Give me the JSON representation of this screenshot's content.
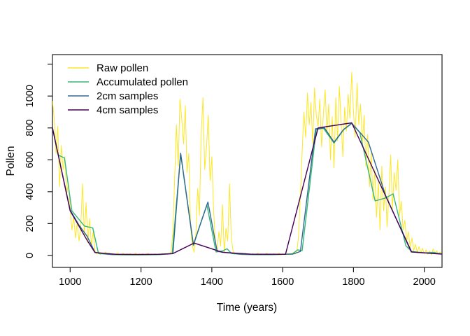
{
  "chart_data": {
    "type": "line",
    "title": "",
    "xlabel": "Time (years)",
    "ylabel": "Pollen",
    "xlim": [
      950,
      2050
    ],
    "ylim": [
      -75,
      1260
    ],
    "grid": false,
    "legend_position": "top-left",
    "x_axis": {
      "ticks": [
        1000,
        1200,
        1400,
        1600,
        1800,
        2000
      ],
      "tick_labels": [
        "1000",
        "1200",
        "1400",
        "1600",
        "1800",
        "2000"
      ]
    },
    "y_axis": {
      "ticks": [
        0,
        200,
        400,
        600,
        800,
        1000,
        1200
      ],
      "tick_labels": [
        "0",
        "200",
        "400",
        "600",
        "800",
        "1000",
        ""
      ]
    },
    "series": [
      {
        "name": "Raw pollen",
        "color": "#FDE725",
        "width": 1,
        "x_start": 950,
        "x_step": 5,
        "values": [
          970,
          860,
          640,
          810,
          430,
          690,
          540,
          620,
          380,
          460,
          300,
          160,
          240,
          110,
          210,
          90,
          180,
          450,
          120,
          330,
          80,
          230,
          60,
          150,
          30,
          10,
          25,
          5,
          18,
          8,
          22,
          4,
          15,
          6,
          12,
          3,
          10,
          16,
          5,
          9,
          14,
          4,
          11,
          6,
          13,
          3,
          8,
          15,
          5,
          10,
          6,
          12,
          4,
          9,
          14,
          5,
          8,
          3,
          11,
          6,
          10,
          4,
          13,
          7,
          9,
          5,
          12,
          20,
          150,
          480,
          820,
          560,
          980,
          860,
          700,
          940,
          520,
          640,
          180,
          60,
          20,
          140,
          420,
          250,
          760,
          990,
          540,
          680,
          880,
          470,
          620,
          280,
          90,
          30,
          150,
          60,
          320,
          20,
          170,
          90,
          450,
          110,
          30,
          8,
          15,
          5,
          12,
          3,
          9,
          14,
          4,
          10,
          6,
          13,
          3,
          8,
          15,
          5,
          11,
          4,
          9,
          14,
          6,
          10,
          3,
          12,
          5,
          8,
          15,
          4,
          11,
          6,
          9,
          13,
          4,
          10,
          18,
          7,
          25,
          120,
          380,
          650,
          900,
          740,
          1020,
          820,
          960,
          700,
          1050,
          880,
          810,
          980,
          680,
          890,
          1040,
          760,
          950,
          600,
          870,
          550,
          990,
          720,
          1060,
          840,
          620,
          930,
          780,
          1010,
          860,
          1150,
          900,
          740,
          1080,
          820,
          950,
          700,
          880,
          560,
          760,
          430,
          640,
          350,
          540,
          240,
          460,
          160,
          560,
          280,
          430,
          180,
          380,
          630,
          290,
          520,
          410,
          600,
          250,
          340,
          160,
          220,
          90,
          150,
          50,
          110,
          30,
          70,
          20,
          55,
          15,
          45,
          10,
          35,
          8,
          28,
          5,
          40,
          15,
          30,
          10,
          22,
          6
        ]
      },
      {
        "name": "Accumulated pollen",
        "color": "#35B779",
        "width": 1.4,
        "points": [
          [
            950,
            800
          ],
          [
            966,
            630
          ],
          [
            984,
            612
          ],
          [
            1005,
            280
          ],
          [
            1040,
            185
          ],
          [
            1064,
            172
          ],
          [
            1080,
            12
          ],
          [
            1120,
            5
          ],
          [
            1160,
            4
          ],
          [
            1200,
            4
          ],
          [
            1250,
            5
          ],
          [
            1288,
            10
          ],
          [
            1312,
            638
          ],
          [
            1348,
            62
          ],
          [
            1368,
            200
          ],
          [
            1386,
            318
          ],
          [
            1412,
            22
          ],
          [
            1430,
            28
          ],
          [
            1443,
            42
          ],
          [
            1456,
            12
          ],
          [
            1490,
            6
          ],
          [
            1530,
            5
          ],
          [
            1570,
            5
          ],
          [
            1605,
            7
          ],
          [
            1628,
            10
          ],
          [
            1642,
            35
          ],
          [
            1655,
            30
          ],
          [
            1695,
            790
          ],
          [
            1715,
            798
          ],
          [
            1745,
            705
          ],
          [
            1772,
            788
          ],
          [
            1795,
            828
          ],
          [
            1818,
            770
          ],
          [
            1861,
            342
          ],
          [
            1890,
            360
          ],
          [
            1912,
            386
          ],
          [
            1948,
            60
          ],
          [
            1964,
            25
          ],
          [
            2000,
            16
          ],
          [
            2025,
            20
          ],
          [
            2050,
            8
          ]
        ]
      },
      {
        "name": "2cm samples",
        "color": "#31688E",
        "width": 1.4,
        "points": [
          [
            950,
            800
          ],
          [
            1000,
            285
          ],
          [
            1025,
            190
          ],
          [
            1048,
            120
          ],
          [
            1070,
            20
          ],
          [
            1110,
            7
          ],
          [
            1160,
            6
          ],
          [
            1210,
            6
          ],
          [
            1260,
            7
          ],
          [
            1290,
            12
          ],
          [
            1312,
            641
          ],
          [
            1348,
            68
          ],
          [
            1389,
            335
          ],
          [
            1415,
            25
          ],
          [
            1445,
            17
          ],
          [
            1480,
            8
          ],
          [
            1520,
            6
          ],
          [
            1560,
            6
          ],
          [
            1600,
            7
          ],
          [
            1628,
            8
          ],
          [
            1650,
            25
          ],
          [
            1693,
            795
          ],
          [
            1718,
            800
          ],
          [
            1745,
            710
          ],
          [
            1772,
            790
          ],
          [
            1795,
            830
          ],
          [
            1842,
            711
          ],
          [
            1890,
            380
          ],
          [
            1963,
            22
          ],
          [
            2000,
            17
          ],
          [
            2050,
            10
          ]
        ]
      },
      {
        "name": "4cm samples",
        "color": "#440154",
        "width": 1.4,
        "points": [
          [
            950,
            800
          ],
          [
            1000,
            280
          ],
          [
            1048,
            95
          ],
          [
            1070,
            18
          ],
          [
            1130,
            7
          ],
          [
            1190,
            6
          ],
          [
            1250,
            7
          ],
          [
            1290,
            12
          ],
          [
            1350,
            78
          ],
          [
            1430,
            20
          ],
          [
            1510,
            8
          ],
          [
            1608,
            7
          ],
          [
            1700,
            800
          ],
          [
            1795,
            832
          ],
          [
            1964,
            22
          ],
          [
            2010,
            14
          ],
          [
            2050,
            8
          ]
        ]
      }
    ]
  }
}
